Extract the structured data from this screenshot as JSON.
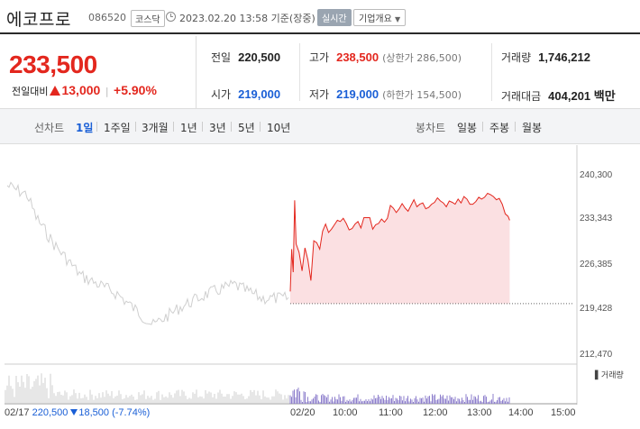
{
  "header": {
    "stock_name": "에코프로",
    "stock_code": "086520",
    "market": "코스닥",
    "datetime": "2023.02.20 13:58 기준(장중)",
    "realtime_label": "실시간",
    "company_label": "기업개요"
  },
  "quote": {
    "price": "233,500",
    "change_label": "전일대비",
    "change": "13,000",
    "change_pct": "+5.90%",
    "prev_close_label": "전일",
    "prev_close": "220,500",
    "high_label": "고가",
    "high": "238,500",
    "upper_limit": "(상한가 286,500)",
    "volume_label": "거래량",
    "volume": "1,746,212",
    "open_label": "시가",
    "open": "219,000",
    "low_label": "저가",
    "low": "219,000",
    "lower_limit": "(하한가 154,500)",
    "amount_label": "거래대금",
    "amount": "404,201 백만",
    "colors": {
      "up": "#e3271e",
      "down": "#1a5fd6"
    }
  },
  "tabs": {
    "line_label": "선차트",
    "line_periods": [
      "1일",
      "1주일",
      "3개월",
      "1년",
      "3년",
      "5년",
      "10년"
    ],
    "active": "1일",
    "candle_label": "봉차트",
    "candle_periods": [
      "일봉",
      "주봉",
      "월봉"
    ]
  },
  "chart_data": {
    "type": "line",
    "title": "",
    "y_ticks": [
      "240,300",
      "233,343",
      "226,385",
      "219,428",
      "212,470"
    ],
    "ylim": [
      212470,
      240300
    ],
    "x_ticks": [
      "02/20",
      "10:00",
      "11:00",
      "12:00",
      "13:00",
      "14:00",
      "15:00"
    ],
    "prev_day": {
      "date": "02/17",
      "close": "220,500",
      "change": "18,500",
      "change_pct": "(-7.74%)"
    },
    "reference_line": 220500,
    "volume_label": "거래량",
    "series": [
      {
        "x": [
          "09:00",
          "09:02",
          "09:04",
          "09:06",
          "09:08",
          "09:12",
          "09:16",
          "09:20",
          "09:24",
          "09:28",
          "09:32",
          "09:36",
          "09:40",
          "09:44",
          "09:48",
          "09:52",
          "09:56",
          "10:00",
          "10:04",
          "10:08",
          "10:12",
          "10:16",
          "10:20",
          "10:24",
          "10:28",
          "10:32",
          "10:36",
          "10:40",
          "10:44",
          "10:48",
          "10:52",
          "10:56",
          "11:00",
          "11:04",
          "11:08",
          "11:12",
          "11:16",
          "11:20",
          "11:24",
          "11:28",
          "11:32",
          "11:36",
          "11:40",
          "11:44",
          "11:48",
          "11:52",
          "11:56",
          "12:00",
          "12:04",
          "12:08",
          "12:12",
          "12:16",
          "12:20",
          "12:24",
          "12:28",
          "12:32",
          "12:36",
          "12:40",
          "12:44",
          "12:48",
          "12:52",
          "12:56",
          "13:00",
          "13:04",
          "13:08",
          "13:12",
          "13:16",
          "13:20",
          "13:24",
          "13:28",
          "13:32",
          "13:36",
          "13:40",
          "13:44",
          "13:48",
          "13:52",
          "13:56",
          "13:58"
        ],
        "values": [
          222400,
          229000,
          225400,
          236600,
          229800,
          228500,
          225600,
          229200,
          227300,
          224100,
          230300,
          230000,
          229000,
          231800,
          232900,
          231600,
          232100,
          232800,
          233500,
          233300,
          233800,
          233000,
          232000,
          232200,
          232900,
          233300,
          232300,
          233900,
          233900,
          233900,
          232100,
          232800,
          233000,
          233700,
          233200,
          233800,
          235800,
          235400,
          234700,
          235300,
          236100,
          235400,
          234900,
          235800,
          236700,
          235600,
          236000,
          236200,
          235300,
          235500,
          236000,
          236300,
          237000,
          236500,
          236200,
          235600,
          236500,
          236300,
          236000,
          236800,
          236200,
          237200,
          236800,
          236000,
          236000,
          236400,
          237100,
          236800,
          237100,
          237700,
          237500,
          237200,
          236700,
          236900,
          236000,
          234500,
          234100,
          233500
        ]
      }
    ]
  }
}
